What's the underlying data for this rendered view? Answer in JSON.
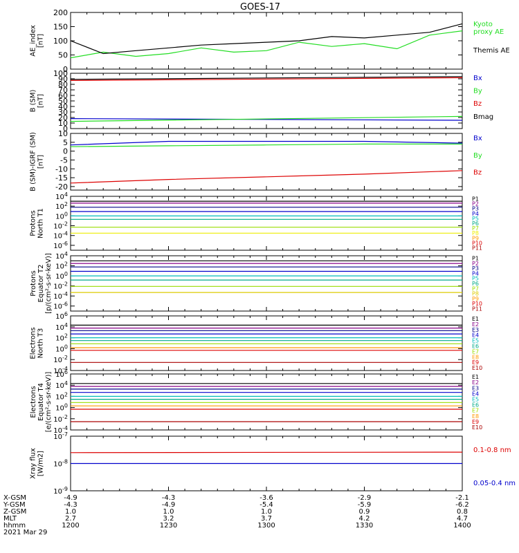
{
  "title": "GOES-17",
  "colors": {
    "black": "#000000",
    "red": "#dd0000",
    "green": "#22dd22",
    "blue": "#0000cc",
    "cyan": "#00bbbb",
    "teal": "#00aa88",
    "lime": "#99dd00",
    "yellow": "#eeee00",
    "orange": "#ff9900",
    "gold": "#ddcc00",
    "darkred": "#aa0000",
    "purple": "#880088",
    "navy": "#000088"
  },
  "ephemeris": {
    "labels": [
      "X-GSM",
      "Y-GSM",
      "Z-GSM",
      "MLT",
      "hhmm"
    ],
    "date": "2021 Mar 29",
    "columns": [
      [
        "-4.9",
        "-4.3",
        "1.0",
        "2.7",
        "1200"
      ],
      [
        "-4.3",
        "-4.9",
        "1.0",
        "3.2",
        "1230"
      ],
      [
        "-3.6",
        "-5.4",
        "1.0",
        "3.7",
        "1300"
      ],
      [
        "-2.9",
        "-5.9",
        "0.9",
        "4.2",
        "1330"
      ],
      [
        "-2.1",
        "-6.2",
        "0.8",
        "4.7",
        "1400"
      ]
    ]
  },
  "chart_data": [
    {
      "type": "line",
      "ylabel": [
        "AE_index",
        "[nT]"
      ],
      "scale": "linear",
      "ylim": [
        0,
        200
      ],
      "yticks": [
        "0",
        "50",
        "100",
        "150",
        "200"
      ],
      "x": [
        1200,
        1210,
        1220,
        1230,
        1240,
        1250,
        1300,
        1310,
        1320,
        1330,
        1340,
        1350,
        1400
      ],
      "series": [
        {
          "name": "Kyoto proxy AE",
          "color": "green",
          "label_lines": [
            "Kyoto",
            "proxy AE"
          ],
          "values": [
            40,
            60,
            45,
            55,
            75,
            60,
            65,
            95,
            80,
            90,
            72,
            120,
            135
          ]
        },
        {
          "name": "Themis AE",
          "color": "black",
          "label_lines": [
            "Themis AE"
          ],
          "values": [
            100,
            55,
            65,
            75,
            85,
            90,
            95,
            100,
            115,
            110,
            120,
            130,
            160
          ]
        }
      ]
    },
    {
      "type": "line",
      "ylabel": [
        "B (SM)",
        "[nT]"
      ],
      "scale": "linear",
      "ylim": [
        0,
        100
      ],
      "yticks": [
        "0",
        "10",
        "20",
        "30",
        "40",
        "50",
        "60",
        "70",
        "80",
        "90",
        "100"
      ],
      "x": [
        1200,
        1400
      ],
      "series": [
        {
          "name": "Bx",
          "color": "blue",
          "values": [
            18,
            15
          ]
        },
        {
          "name": "By",
          "color": "green",
          "values": [
            13,
            22
          ]
        },
        {
          "name": "Bz",
          "color": "red",
          "values": [
            87,
            92
          ]
        },
        {
          "name": "Bmag",
          "color": "black",
          "values": [
            89,
            94
          ]
        }
      ]
    },
    {
      "type": "line",
      "ylabel": [
        "B (SM)-IGRF (SM)",
        "[nT]"
      ],
      "scale": "linear",
      "ylim": [
        -22,
        10
      ],
      "yticks": [
        "-20",
        "-15",
        "-10",
        "-5",
        "0",
        "5",
        "10"
      ],
      "x": [
        1200,
        1230,
        1300,
        1330,
        1400
      ],
      "series": [
        {
          "name": "Bx",
          "color": "blue",
          "values": [
            3.5,
            5.5,
            5.5,
            5.5,
            4.5
          ]
        },
        {
          "name": "By",
          "color": "green",
          "values": [
            2.5,
            3,
            3.5,
            4,
            4
          ]
        },
        {
          "name": "Bz",
          "color": "red",
          "values": [
            -18,
            -16,
            -14.5,
            -13,
            -11
          ]
        }
      ]
    },
    {
      "type": "line",
      "ylabel": [
        "Protons",
        "North T1"
      ],
      "scale": "log",
      "ylim": [
        1e-07,
        10000.0
      ],
      "yticks": [
        "10^4",
        "10^2",
        "10^0",
        "10^-2",
        "10^-4",
        "10^-6"
      ],
      "x": [
        1200,
        1400
      ],
      "series": [
        {
          "name": "P1",
          "color": "black",
          "values": [
            1000,
            1000
          ]
        },
        {
          "name": "P2",
          "color": "purple",
          "values": [
            400,
            400
          ]
        },
        {
          "name": "P3",
          "color": "navy",
          "values": [
            60,
            60
          ]
        },
        {
          "name": "P4",
          "color": "blue",
          "values": [
            8,
            8
          ]
        },
        {
          "name": "P5",
          "color": "cyan",
          "values": [
            1,
            1
          ]
        },
        {
          "name": "P6",
          "color": "teal",
          "values": [
            0.2,
            0.2
          ]
        },
        {
          "name": "P7",
          "color": "lime",
          "values": [
            0.005,
            0.005
          ]
        },
        {
          "name": "P8",
          "color": "yellow",
          "values": [
            0.0003,
            0.0003
          ]
        },
        {
          "name": "P9",
          "color": "orange",
          "values": [
            null,
            null
          ]
        },
        {
          "name": "P10",
          "color": "red",
          "values": [
            null,
            null
          ]
        },
        {
          "name": "P11",
          "color": "darkred",
          "values": [
            null,
            null
          ]
        }
      ]
    },
    {
      "type": "line",
      "ylabel": [
        "Protons",
        "Equator T2",
        "[p/(cm²-s-sr-keV)]"
      ],
      "scale": "log",
      "ylim": [
        1e-07,
        10000.0
      ],
      "yticks": [
        "10^4",
        "10^2",
        "10^0",
        "10^-2",
        "10^-4",
        "10^-6"
      ],
      "x": [
        1200,
        1400
      ],
      "series": [
        {
          "name": "P1",
          "color": "black",
          "values": [
            1000,
            1000
          ]
        },
        {
          "name": "P2",
          "color": "purple",
          "values": [
            300,
            300
          ]
        },
        {
          "name": "P3",
          "color": "navy",
          "values": [
            60,
            60
          ]
        },
        {
          "name": "P4",
          "color": "blue",
          "values": [
            8,
            8
          ]
        },
        {
          "name": "P5",
          "color": "cyan",
          "values": [
            1,
            1
          ]
        },
        {
          "name": "P6",
          "color": "teal",
          "values": [
            0.15,
            0.15
          ]
        },
        {
          "name": "P7",
          "color": "lime",
          "values": [
            0.008,
            0.008
          ]
        },
        {
          "name": "P8",
          "color": "gold",
          "values": [
            0.0005,
            0.0005
          ]
        },
        {
          "name": "P9",
          "color": "orange",
          "values": [
            null,
            null
          ]
        },
        {
          "name": "P10",
          "color": "red",
          "values": [
            null,
            null
          ]
        },
        {
          "name": "P11",
          "color": "darkred",
          "values": [
            null,
            null
          ]
        }
      ]
    },
    {
      "type": "line",
      "ylabel": [
        "Electrons",
        "North T3"
      ],
      "scale": "log",
      "ylim": [
        0.0001,
        1000000.0
      ],
      "yticks": [
        "10^6",
        "10^4",
        "10^2",
        "10^0",
        "10^-2",
        "10^-4"
      ],
      "x": [
        1200,
        1400
      ],
      "series": [
        {
          "name": "E1",
          "color": "black",
          "values": [
            20000,
            20000
          ]
        },
        {
          "name": "E2",
          "color": "purple",
          "values": [
            6000,
            6000
          ]
        },
        {
          "name": "E3",
          "color": "navy",
          "values": [
            2000,
            2000
          ]
        },
        {
          "name": "E4",
          "color": "blue",
          "values": [
            500,
            500
          ]
        },
        {
          "name": "E5",
          "color": "cyan",
          "values": [
            100,
            100
          ]
        },
        {
          "name": "E6",
          "color": "teal",
          "values": [
            30,
            30
          ]
        },
        {
          "name": "E7",
          "color": "lime",
          "values": [
            8,
            8
          ]
        },
        {
          "name": "E8",
          "color": "orange",
          "values": [
            1.5,
            1.5
          ]
        },
        {
          "name": "E9",
          "color": "red",
          "values": [
            0.5,
            0.5
          ]
        },
        {
          "name": "E10",
          "color": "darkred",
          "values": [
            0.003,
            0.003
          ]
        }
      ]
    },
    {
      "type": "line",
      "ylabel": [
        "Electrons",
        "Equator T4",
        "[e/(cm²-s-sr-keV)]"
      ],
      "scale": "log",
      "ylim": [
        0.0001,
        1000000.0
      ],
      "yticks": [
        "10^6",
        "10^4",
        "10^2",
        "10^0",
        "10^-2",
        "10^-4"
      ],
      "x": [
        1200,
        1400
      ],
      "series": [
        {
          "name": "E1",
          "color": "black",
          "values": [
            20000,
            20000
          ]
        },
        {
          "name": "E2",
          "color": "purple",
          "values": [
            6000,
            6000
          ]
        },
        {
          "name": "E3",
          "color": "navy",
          "values": [
            2000,
            2000
          ]
        },
        {
          "name": "E4",
          "color": "blue",
          "values": [
            500,
            500
          ]
        },
        {
          "name": "E5",
          "color": "cyan",
          "values": [
            100,
            100
          ]
        },
        {
          "name": "E6",
          "color": "teal",
          "values": [
            30,
            30
          ]
        },
        {
          "name": "E7",
          "color": "lime",
          "values": [
            8,
            8
          ]
        },
        {
          "name": "E8",
          "color": "orange",
          "values": [
            2,
            2
          ]
        },
        {
          "name": "E9",
          "color": "red",
          "values": [
            0.5,
            0.5
          ]
        },
        {
          "name": "E10",
          "color": "darkred",
          "values": [
            0.003,
            0.003
          ]
        }
      ]
    },
    {
      "type": "line",
      "ylabel": [
        "Xray flux",
        "[W/m2]"
      ],
      "scale": "log",
      "ylim": [
        1e-09,
        1e-07
      ],
      "yticks": [
        "10^-7",
        "10^-8",
        "10^-9"
      ],
      "x": [
        1200,
        1400
      ],
      "series": [
        {
          "name": "0.1-0.8 nm",
          "color": "red",
          "values": [
            2.5e-08,
            2.6e-08
          ]
        },
        {
          "name": "0.05-0.4 nm",
          "color": "blue",
          "values": [
            1e-08,
            1e-08
          ]
        }
      ]
    }
  ]
}
